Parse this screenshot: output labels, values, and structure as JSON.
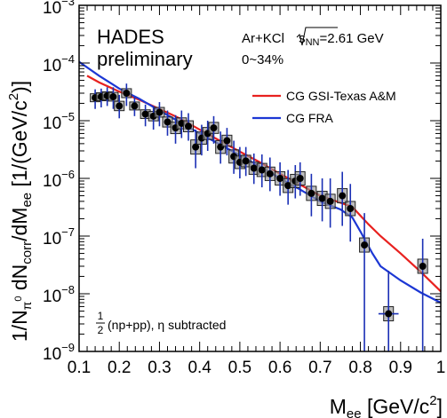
{
  "chart_data": {
    "type": "scatter",
    "xlabel": {
      "main": "M",
      "sub": "ee",
      "unit_pre": " [GeV/c",
      "unit_sup": "2",
      "unit_post": "]"
    },
    "ylabel": {
      "p1": "1/N",
      "p1_sub": "π",
      "p1_sub_sup": "0",
      "p2": " dN",
      "p2_sub": "corr",
      "p3": "/dM",
      "p3_sub": "ee",
      "p4": " [1/(GeV/c",
      "p4_sup": "2",
      "p5": ")]"
    },
    "xlim": [
      0.1,
      1.0
    ],
    "ylim": [
      1e-09,
      0.001
    ],
    "yscale": "log",
    "x_ticks": [
      {
        "v": 0.1,
        "label": "0.1"
      },
      {
        "v": 0.2,
        "label": "0.2"
      },
      {
        "v": 0.3,
        "label": "0.3"
      },
      {
        "v": 0.4,
        "label": "0.4"
      },
      {
        "v": 0.5,
        "label": "0.5"
      },
      {
        "v": 0.6,
        "label": "0.6"
      },
      {
        "v": 0.7,
        "label": "0.7"
      },
      {
        "v": 0.8,
        "label": "0.8"
      },
      {
        "v": 0.9,
        "label": "0.9"
      },
      {
        "v": 1.0,
        "label": "1"
      }
    ],
    "y_ticks": [
      {
        "exp": -9,
        "base": "10",
        "sup": "−9"
      },
      {
        "exp": -8,
        "base": "10",
        "sup": "−8"
      },
      {
        "exp": -7,
        "base": "10",
        "sup": "−7"
      },
      {
        "exp": -6,
        "base": "10",
        "sup": "−6"
      },
      {
        "exp": -5,
        "base": "10",
        "sup": "−5"
      },
      {
        "exp": -4,
        "base": "10",
        "sup": "−4"
      },
      {
        "exp": -3,
        "base": "10",
        "sup": "−3"
      }
    ],
    "annotations": {
      "experiment_line1": "HADES",
      "experiment_line2": "preliminary",
      "system_pre": "Ar+KCl ",
      "energy_label": "s",
      "energy_sub": "NN",
      "energy_post": "=2.61 GeV",
      "centrality": "0~34%",
      "reference_num": "1",
      "reference_den": "2",
      "reference_text": "(np+pp), η subtracted"
    },
    "models": [
      {
        "name": "CG GSI-Texas A&M",
        "color": "#e8211f",
        "points": [
          [
            0.12,
            6e-05
          ],
          [
            0.15,
            4.6e-05
          ],
          [
            0.2,
            3.2e-05
          ],
          [
            0.25,
            2.3e-05
          ],
          [
            0.3,
            1.6e-05
          ],
          [
            0.35,
            1.1e-05
          ],
          [
            0.4,
            7e-06
          ],
          [
            0.45,
            4.5e-06
          ],
          [
            0.5,
            2.9e-06
          ],
          [
            0.55,
            1.9e-06
          ],
          [
            0.6,
            1.2e-06
          ],
          [
            0.65,
            7.8e-07
          ],
          [
            0.7,
            5e-07
          ],
          [
            0.75,
            3.8e-07
          ],
          [
            0.78,
            3.2e-07
          ],
          [
            0.82,
            1.6e-07
          ],
          [
            0.85,
            1e-07
          ],
          [
            0.9,
            5e-08
          ],
          [
            0.95,
            2.4e-08
          ],
          [
            1.0,
            1.1e-08
          ]
        ]
      },
      {
        "name": "CG FRA",
        "color": "#1c37d4",
        "points": [
          [
            0.1,
            0.000105
          ],
          [
            0.15,
            6e-05
          ],
          [
            0.2,
            3.6e-05
          ],
          [
            0.25,
            2.4e-05
          ],
          [
            0.3,
            1.5e-05
          ],
          [
            0.35,
            9.5e-06
          ],
          [
            0.4,
            6e-06
          ],
          [
            0.45,
            3.9e-06
          ],
          [
            0.5,
            2.5e-06
          ],
          [
            0.55,
            1.6e-06
          ],
          [
            0.6,
            1e-06
          ],
          [
            0.65,
            6.4e-07
          ],
          [
            0.7,
            4e-07
          ],
          [
            0.75,
            2.9e-07
          ],
          [
            0.78,
            2.1e-07
          ],
          [
            0.8,
            1.2e-07
          ],
          [
            0.83,
            5e-08
          ],
          [
            0.85,
            3e-08
          ],
          [
            0.9,
            1.7e-08
          ],
          [
            0.95,
            1.05e-08
          ],
          [
            1.0,
            7e-09
          ]
        ]
      }
    ],
    "data_points": [
      {
        "x": 0.14,
        "y": 2.5e-05,
        "up": 3.5e-05,
        "lo": 1.6e-05
      },
      {
        "x": 0.155,
        "y": 2.6e-05,
        "up": 3.6e-05,
        "lo": 1.7e-05
      },
      {
        "x": 0.17,
        "y": 2.7e-05,
        "up": 3.8e-05,
        "lo": 1.8e-05
      },
      {
        "x": 0.185,
        "y": 2.6e-05,
        "up": 3.8e-05,
        "lo": 1.6e-05
      },
      {
        "x": 0.2,
        "y": 1.8e-05,
        "up": 2.8e-05,
        "lo": 1.1e-05
      },
      {
        "x": 0.218,
        "y": 3e-05,
        "up": 4.4e-05,
        "lo": 1.8e-05
      },
      {
        "x": 0.238,
        "y": 1.8e-05,
        "up": 2.6e-05,
        "lo": 1.2e-05
      },
      {
        "x": 0.265,
        "y": 1.3e-05,
        "up": 1.9e-05,
        "lo": 8e-06
      },
      {
        "x": 0.285,
        "y": 1.2e-05,
        "up": 1.8e-05,
        "lo": 7e-06
      },
      {
        "x": 0.3,
        "y": 1.4e-05,
        "up": 2.1e-05,
        "lo": 8e-06
      },
      {
        "x": 0.32,
        "y": 9.5e-06,
        "up": 1.5e-05,
        "lo": 5.5e-06
      },
      {
        "x": 0.34,
        "y": 7.5e-06,
        "up": 1.25e-05,
        "lo": 4e-06
      },
      {
        "x": 0.355,
        "y": 9e-06,
        "up": 1.5e-05,
        "lo": 5e-06
      },
      {
        "x": 0.372,
        "y": 8e-06,
        "up": 1.35e-05,
        "lo": 4.5e-06
      },
      {
        "x": 0.39,
        "y": 3.5e-06,
        "up": 7e-06,
        "lo": 1.5e-06
      },
      {
        "x": 0.405,
        "y": 5e-06,
        "up": 8.5e-06,
        "lo": 2.5e-06
      },
      {
        "x": 0.42,
        "y": 6e-06,
        "up": 1e-05,
        "lo": 3e-06
      },
      {
        "x": 0.435,
        "y": 7.5e-06,
        "up": 1.2e-05,
        "lo": 4e-06
      },
      {
        "x": 0.452,
        "y": 3.5e-06,
        "up": 6.5e-06,
        "lo": 1.8e-06
      },
      {
        "x": 0.468,
        "y": 4.5e-06,
        "up": 7.5e-06,
        "lo": 2.5e-06
      },
      {
        "x": 0.485,
        "y": 2.4e-06,
        "up": 4.5e-06,
        "lo": 1.2e-06
      },
      {
        "x": 0.5,
        "y": 1.9e-06,
        "up": 3.5e-06,
        "lo": 1e-06
      },
      {
        "x": 0.515,
        "y": 2e-06,
        "up": 3.5e-06,
        "lo": 1.1e-06
      },
      {
        "x": 0.535,
        "y": 1.5e-06,
        "up": 2.7e-06,
        "lo": 8e-07
      },
      {
        "x": 0.555,
        "y": 1.4e-06,
        "up": 2.6e-06,
        "lo": 7e-07
      },
      {
        "x": 0.575,
        "y": 1.2e-06,
        "up": 2.3e-06,
        "lo": 6e-07
      },
      {
        "x": 0.6,
        "y": 1e-06,
        "up": 1.9e-06,
        "lo": 5e-07
      },
      {
        "x": 0.62,
        "y": 7.5e-07,
        "up": 1.4e-06,
        "lo": 3.5e-07
      },
      {
        "x": 0.638,
        "y": 9e-07,
        "up": 1.7e-06,
        "lo": 4.5e-07
      },
      {
        "x": 0.65,
        "y": 1e-06,
        "up": 1.9e-06,
        "lo": 5e-07
      },
      {
        "x": 0.678,
        "y": 5.5e-07,
        "up": 1.2e-06,
        "lo": 2.2e-07
      },
      {
        "x": 0.705,
        "y": 4.5e-07,
        "up": 1e-06,
        "lo": 1.8e-07
      },
      {
        "x": 0.725,
        "y": 4e-07,
        "up": 1e-06,
        "lo": 1.4e-07
      },
      {
        "x": 0.755,
        "y": 5e-07,
        "up": 1.3e-06,
        "lo": 1.5e-07
      },
      {
        "x": 0.775,
        "y": 3e-07,
        "up": 8e-07,
        "lo": 8e-08
      },
      {
        "x": 0.81,
        "y": 7e-08,
        "up": 2.5e-07,
        "lo": 1e-09
      },
      {
        "x": 0.87,
        "y": 4.5e-09,
        "up": 2.5e-08,
        "lo": 1e-09,
        "xerr": 0.025
      },
      {
        "x": 0.955,
        "y": 3e-08,
        "up": 9e-08,
        "lo": 1e-09
      }
    ]
  }
}
